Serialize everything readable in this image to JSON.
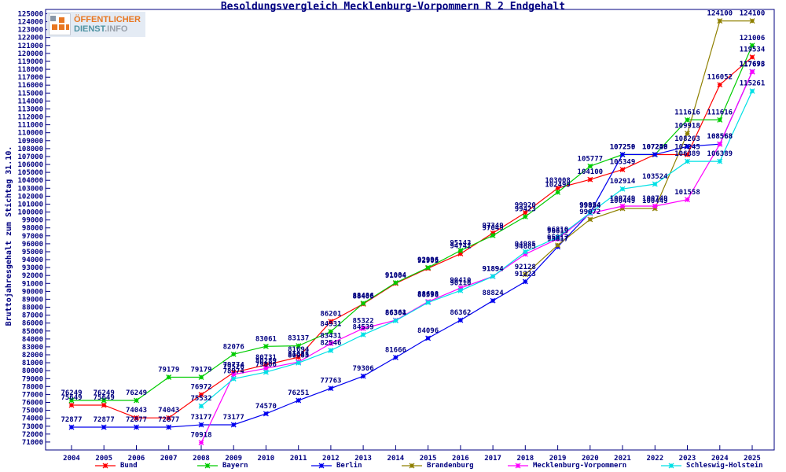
{
  "header": {
    "title": "Besoldungsvergleich Mecklenburg-Vorpommern R 2 Endgehalt"
  },
  "logo": {
    "top": "ÖFFENTLICHER",
    "name": "DIENST",
    "suffix": ".INFO"
  },
  "axes": {
    "ylabel": "Bruttojahresgehalt zum Stichtag 31.10."
  },
  "chart_data": {
    "type": "line",
    "title": "Besoldungsvergleich Mecklenburg-Vorpommern R 2 Endgehalt",
    "xlabel": "",
    "ylabel": "Bruttojahresgehalt zum Stichtag 31.10.",
    "x": [
      2004,
      2005,
      2006,
      2007,
      2008,
      2009,
      2010,
      2011,
      2012,
      2013,
      2014,
      2015,
      2016,
      2017,
      2018,
      2019,
      2020,
      2021,
      2022,
      2023,
      2024,
      2025
    ],
    "ylim": [
      70000,
      125000
    ],
    "ytick_step": 1000,
    "ytick_label_min": 71000,
    "grid": false,
    "legend_position": "bottom",
    "point_labels": true,
    "text_color": "#000080",
    "series": [
      {
        "name": "Bund",
        "color": "#ff0000",
        "values": [
          75649,
          75649,
          74043,
          74043,
          76972,
          79774,
          80731,
          81694,
          86201,
          88406,
          91004,
          92905,
          94741,
          97349,
          99920,
          103008,
          104100,
          105349,
          107245,
          107245,
          116052,
          119534
        ]
      },
      {
        "name": "Bayern",
        "color": "#00cc00",
        "values": [
          76249,
          76249,
          76249,
          79179,
          79179,
          82076,
          83061,
          83137,
          84931,
          88486,
          91084,
          92996,
          95143,
          97049,
          99423,
          102499,
          105777,
          107250,
          107250,
          111616,
          111616,
          121006
        ]
      },
      {
        "name": "Berlin",
        "color": "#0000ee",
        "values": [
          72877,
          72877,
          72877,
          72877,
          73177,
          73177,
          74570,
          76251,
          77763,
          79306,
          81666,
          84096,
          86362,
          88824,
          91223,
          95617,
          99924,
          107259,
          107259,
          108263,
          108568,
          117698
        ]
      },
      {
        "name": "Brandenburg",
        "color": "#8f8000",
        "values": [
          null,
          null,
          null,
          null,
          null,
          null,
          null,
          null,
          null,
          null,
          null,
          null,
          null,
          null,
          92128,
          95817,
          99072,
          100449,
          100449,
          109918,
          124100,
          124100
        ]
      },
      {
        "name": "Mecklenburg-Vorpommern",
        "color": "#ff00ff",
        "values": [
          null,
          null,
          null,
          null,
          70918,
          79526,
          80289,
          81085,
          83431,
          85322,
          86361,
          88698,
          90410,
          91894,
          94685,
          96619,
          99834,
          100749,
          100749,
          101558,
          108568,
          117675
        ]
      },
      {
        "name": "Schleswig-Holstein",
        "color": "#00e0e5",
        "values": [
          null,
          null,
          null,
          null,
          75532,
          78974,
          79806,
          80985,
          82546,
          84539,
          86304,
          88598,
          90110,
          91894,
          94985,
          96810,
          99894,
          102914,
          103524,
          106389,
          106389,
          115261
        ]
      }
    ]
  }
}
